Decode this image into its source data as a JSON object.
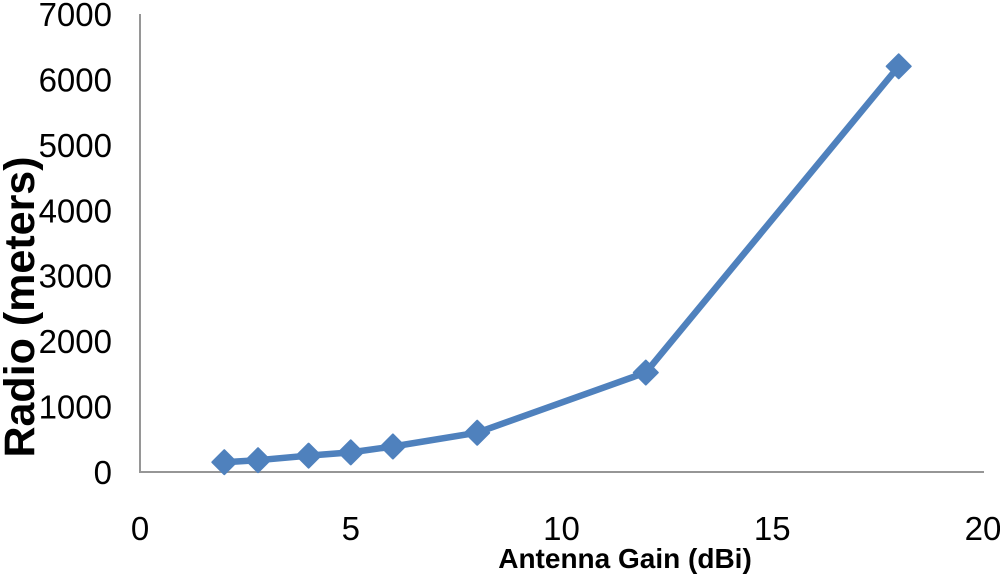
{
  "page": {
    "background": "#FFFFFF"
  },
  "chart_data": {
    "type": "line",
    "x": [
      2,
      2.8,
      4,
      5,
      6,
      8,
      12,
      18
    ],
    "y": [
      150,
      180,
      250,
      300,
      390,
      600,
      1520,
      6200
    ],
    "title": "",
    "xlabel": "Antenna Gain (dBi)",
    "ylabel": "Radio (meters)",
    "xlim": [
      0,
      20
    ],
    "ylim": [
      0,
      7000
    ],
    "x_ticks": [
      0,
      5,
      10,
      15,
      20
    ],
    "y_ticks": [
      0,
      1000,
      2000,
      3000,
      4000,
      5000,
      6000,
      7000
    ],
    "grid": false,
    "legend": "none",
    "marker": "diamond",
    "line_color": "#4F81BD",
    "marker_color": "#4F81BD",
    "axis_color": "#969696",
    "text_color": "#000000"
  }
}
